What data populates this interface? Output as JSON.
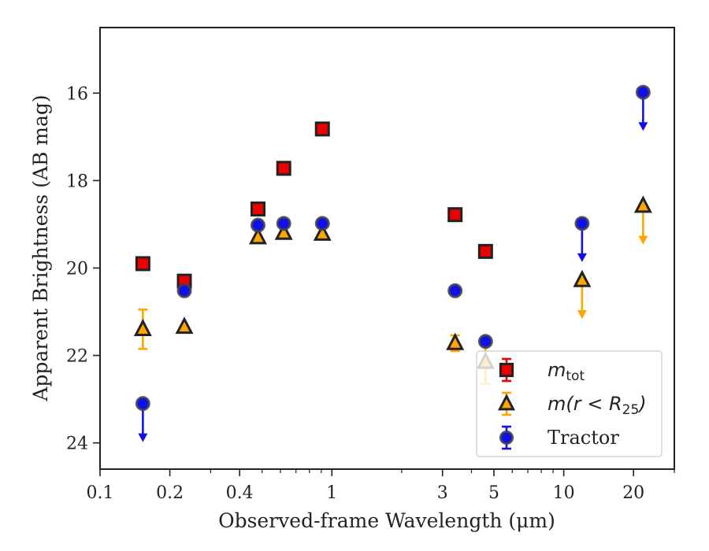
{
  "chart_data": {
    "type": "scatter",
    "xscale": "log",
    "xlim": [
      0.1,
      30
    ],
    "ylim": [
      24.6,
      14.5
    ],
    "y_inverted": true,
    "xlabel": "Observed-frame Wavelength (μm)",
    "ylabel": "Apparent Brightness (AB mag)",
    "x_ticks": [
      {
        "value": 0.1,
        "label": "0.1"
      },
      {
        "value": 0.2,
        "label": "0.2"
      },
      {
        "value": 0.4,
        "label": "0.4"
      },
      {
        "value": 1,
        "label": "1"
      },
      {
        "value": 3,
        "label": "3"
      },
      {
        "value": 5,
        "label": "5"
      },
      {
        "value": 10,
        "label": "10"
      },
      {
        "value": 20,
        "label": "20"
      }
    ],
    "x_minor_ticks": [
      0.3,
      0.5,
      0.6,
      0.7,
      0.8,
      0.9,
      2,
      4,
      6,
      7,
      8,
      9,
      30
    ],
    "y_ticks": [
      {
        "value": 16,
        "label": "16"
      },
      {
        "value": 18,
        "label": "18"
      },
      {
        "value": 20,
        "label": "20"
      },
      {
        "value": 22,
        "label": "22"
      },
      {
        "value": 24,
        "label": "24"
      }
    ],
    "legend_position": "lower-right",
    "series": [
      {
        "name": "m_tot",
        "label_main": "m",
        "label_sub": "tot",
        "marker": "square",
        "color": "#ee0000",
        "points": [
          {
            "x": 0.153,
            "y": 19.9
          },
          {
            "x": 0.231,
            "y": 20.3
          },
          {
            "x": 0.48,
            "y": 18.65
          },
          {
            "x": 0.62,
            "y": 17.72
          },
          {
            "x": 0.91,
            "y": 16.82
          },
          {
            "x": 3.4,
            "y": 18.78
          },
          {
            "x": 4.6,
            "y": 19.62
          }
        ]
      },
      {
        "name": "m(r < R25)",
        "label_main": "m(r < R",
        "label_sub": "25",
        "label_tail": ")",
        "marker": "triangle",
        "color": "#ffa500",
        "points": [
          {
            "x": 0.153,
            "y": 21.4,
            "err": 0.45
          },
          {
            "x": 0.231,
            "y": 21.35
          },
          {
            "x": 0.48,
            "y": 19.3
          },
          {
            "x": 0.62,
            "y": 19.2
          },
          {
            "x": 0.91,
            "y": 19.22
          },
          {
            "x": 3.4,
            "y": 21.72,
            "err": 0.18
          },
          {
            "x": 4.6,
            "y": 22.15,
            "err": 0.5
          },
          {
            "x": 12.0,
            "y": 20.28,
            "upper_limit": true
          },
          {
            "x": 22.0,
            "y": 18.58,
            "upper_limit": true
          }
        ]
      },
      {
        "name": "Tractor",
        "label_main": "Tractor",
        "marker": "circle",
        "color": "#1010ee",
        "points": [
          {
            "x": 0.153,
            "y": 23.1,
            "upper_limit": true
          },
          {
            "x": 0.231,
            "y": 20.52
          },
          {
            "x": 0.48,
            "y": 19.02
          },
          {
            "x": 0.62,
            "y": 18.98
          },
          {
            "x": 0.91,
            "y": 18.98
          },
          {
            "x": 3.4,
            "y": 20.52
          },
          {
            "x": 4.6,
            "y": 21.68
          },
          {
            "x": 12.0,
            "y": 18.98,
            "upper_limit": true
          },
          {
            "x": 22.0,
            "y": 15.98,
            "upper_limit": true
          }
        ]
      }
    ]
  }
}
